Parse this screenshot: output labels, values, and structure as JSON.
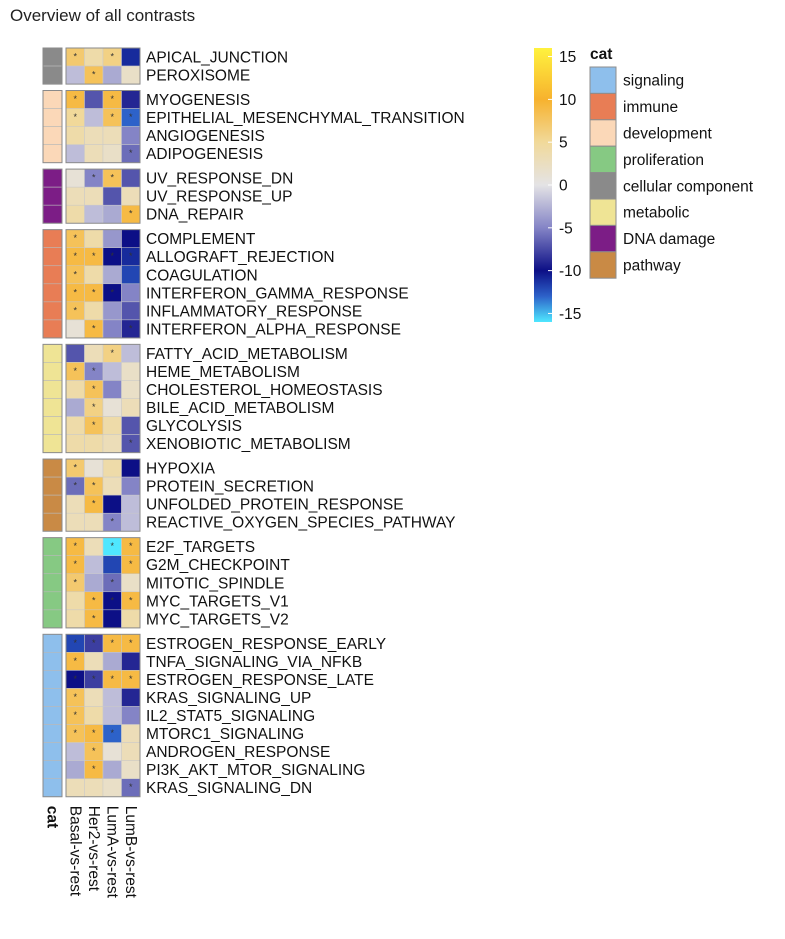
{
  "header": {
    "title": "Overview of all contrasts"
  },
  "chart_data": {
    "type": "heatmap",
    "title": "Overview of all contrasts",
    "columns": [
      "Basal-vs-rest",
      "Her2-vs-rest",
      "LumA-vs-rest",
      "LumB-vs-rest"
    ],
    "category_column_label": "cat",
    "legend_title": "cat",
    "categories": [
      {
        "name": "signaling",
        "color": "#8ebfec"
      },
      {
        "name": "immune",
        "color": "#e87d55"
      },
      {
        "name": "development",
        "color": "#fbd8b8"
      },
      {
        "name": "proliferation",
        "color": "#86c983"
      },
      {
        "name": "cellular component",
        "color": "#8a8a8a"
      },
      {
        "name": "metabolic",
        "color": "#efe495"
      },
      {
        "name": "DNA damage",
        "color": "#7c1d86"
      },
      {
        "name": "pathway",
        "color": "#c98a45"
      }
    ],
    "colorbar": {
      "range": [
        -16,
        16
      ],
      "ticks": [
        15,
        10,
        5,
        0,
        -5,
        -10,
        -15
      ],
      "stops": [
        {
          "v": 16,
          "c": "#fff23e"
        },
        {
          "v": 10,
          "c": "#f7b22e"
        },
        {
          "v": 5,
          "c": "#f1d99a"
        },
        {
          "v": 0,
          "c": "#e4e3e5"
        },
        {
          "v": -5,
          "c": "#8484c6"
        },
        {
          "v": -10,
          "c": "#0c0f86"
        },
        {
          "v": -13,
          "c": "#2d62c9"
        },
        {
          "v": -16,
          "c": "#4fe7ff"
        }
      ]
    },
    "groups": [
      {
        "category": "cellular component",
        "rows": [
          {
            "label": "APICAL_JUNCTION",
            "values": [
              7,
              4,
              6,
              -11
            ],
            "stars": [
              1,
              0,
              1,
              0
            ]
          },
          {
            "label": "PEROXISOME",
            "values": [
              -2,
              8,
              -3,
              2
            ],
            "stars": [
              0,
              1,
              0,
              0
            ]
          }
        ]
      },
      {
        "category": "development",
        "rows": [
          {
            "label": "MYOGENESIS",
            "values": [
              9,
              -7,
              9,
              -9
            ],
            "stars": [
              1,
              0,
              1,
              0
            ]
          },
          {
            "label": "EPITHELIAL_MESENCHYMAL_TRANSITION",
            "values": [
              5,
              -2,
              8,
              -13
            ],
            "stars": [
              1,
              0,
              1,
              1
            ]
          },
          {
            "label": "ANGIOGENESIS",
            "values": [
              4,
              3,
              3,
              -5
            ],
            "stars": [
              0,
              0,
              0,
              0
            ]
          },
          {
            "label": "ADIPOGENESIS",
            "values": [
              -2,
              3,
              2,
              -6
            ],
            "stars": [
              0,
              0,
              0,
              1
            ]
          }
        ]
      },
      {
        "category": "DNA damage",
        "rows": [
          {
            "label": "UV_RESPONSE_DN",
            "values": [
              1,
              -5,
              8,
              -7
            ],
            "stars": [
              0,
              1,
              1,
              0
            ]
          },
          {
            "label": "UV_RESPONSE_UP",
            "values": [
              3,
              3,
              -7,
              3
            ],
            "stars": [
              0,
              0,
              0,
              0
            ]
          },
          {
            "label": "DNA_REPAIR",
            "values": [
              4,
              -2,
              -3,
              9
            ],
            "stars": [
              0,
              0,
              0,
              1
            ]
          }
        ]
      },
      {
        "category": "immune",
        "rows": [
          {
            "label": "COMPLEMENT",
            "values": [
              8,
              4,
              -4,
              -10
            ],
            "stars": [
              1,
              0,
              0,
              0
            ]
          },
          {
            "label": "ALLOGRAFT_REJECTION",
            "values": [
              9,
              9,
              -10,
              -11
            ],
            "stars": [
              1,
              1,
              1,
              1
            ]
          },
          {
            "label": "COAGULATION",
            "values": [
              8,
              4,
              -3,
              -12
            ],
            "stars": [
              1,
              0,
              0,
              0
            ]
          },
          {
            "label": "INTERFERON_GAMMA_RESPONSE",
            "values": [
              9,
              9,
              -10,
              -5
            ],
            "stars": [
              1,
              1,
              1,
              0
            ]
          },
          {
            "label": "INFLAMMATORY_RESPONSE",
            "values": [
              8,
              4,
              -4,
              -7
            ],
            "stars": [
              1,
              0,
              0,
              0
            ]
          },
          {
            "label": "INTERFERON_ALPHA_RESPONSE",
            "values": [
              1,
              9,
              -5,
              -9
            ],
            "stars": [
              0,
              1,
              0,
              1
            ]
          }
        ]
      },
      {
        "category": "metabolic",
        "rows": [
          {
            "label": "FATTY_ACID_METABOLISM",
            "values": [
              -7,
              3,
              6,
              -2
            ],
            "stars": [
              0,
              0,
              1,
              0
            ]
          },
          {
            "label": "HEME_METABOLISM",
            "values": [
              8,
              -5,
              -2,
              2
            ],
            "stars": [
              1,
              1,
              0,
              0
            ]
          },
          {
            "label": "CHOLESTEROL_HOMEOSTASIS",
            "values": [
              4,
              8,
              -5,
              2
            ],
            "stars": [
              0,
              1,
              0,
              0
            ]
          },
          {
            "label": "BILE_ACID_METABOLISM",
            "values": [
              -3,
              6,
              1,
              3
            ],
            "stars": [
              0,
              1,
              0,
              0
            ]
          },
          {
            "label": "GLYCOLYSIS",
            "values": [
              4,
              8,
              4,
              -7
            ],
            "stars": [
              0,
              1,
              0,
              0
            ]
          },
          {
            "label": "XENOBIOTIC_METABOLISM",
            "values": [
              4,
              4,
              3,
              -7
            ],
            "stars": [
              0,
              0,
              0,
              1
            ]
          }
        ]
      },
      {
        "category": "pathway",
        "rows": [
          {
            "label": "HYPOXIA",
            "values": [
              7,
              1,
              4,
              -10
            ],
            "stars": [
              1,
              0,
              0,
              0
            ]
          },
          {
            "label": "PROTEIN_SECRETION",
            "values": [
              -6,
              8,
              3,
              -5
            ],
            "stars": [
              1,
              1,
              0,
              0
            ]
          },
          {
            "label": "UNFOLDED_PROTEIN_RESPONSE",
            "values": [
              3,
              9,
              -10,
              -2
            ],
            "stars": [
              0,
              1,
              0,
              0
            ]
          },
          {
            "label": "REACTIVE_OXYGEN_SPECIES_PATHWAY",
            "values": [
              3,
              3,
              -5,
              -2
            ],
            "stars": [
              0,
              0,
              1,
              0
            ]
          }
        ]
      },
      {
        "category": "proliferation",
        "rows": [
          {
            "label": "E2F_TARGETS",
            "values": [
              9,
              3,
              -16,
              9
            ],
            "stars": [
              1,
              0,
              1,
              1
            ]
          },
          {
            "label": "G2M_CHECKPOINT",
            "values": [
              9,
              -2,
              -12,
              9
            ],
            "stars": [
              1,
              0,
              0,
              1
            ]
          },
          {
            "label": "MITOTIC_SPINDLE",
            "values": [
              7,
              -3,
              -6,
              2
            ],
            "stars": [
              1,
              0,
              1,
              0
            ]
          },
          {
            "label": "MYC_TARGETS_V1",
            "values": [
              4,
              9,
              -10,
              9
            ],
            "stars": [
              0,
              1,
              1,
              1
            ]
          },
          {
            "label": "MYC_TARGETS_V2",
            "values": [
              4,
              9,
              -10,
              4
            ],
            "stars": [
              0,
              1,
              0,
              0
            ]
          }
        ]
      },
      {
        "category": "signaling",
        "rows": [
          {
            "label": "ESTROGEN_RESPONSE_EARLY",
            "values": [
              -12,
              -8,
              9,
              9
            ],
            "stars": [
              1,
              1,
              1,
              1
            ]
          },
          {
            "label": "TNFA_SIGNALING_VIA_NFKB",
            "values": [
              9,
              3,
              -3,
              -9
            ],
            "stars": [
              1,
              0,
              0,
              0
            ]
          },
          {
            "label": "ESTROGEN_RESPONSE_LATE",
            "values": [
              -10,
              -8,
              9,
              9
            ],
            "stars": [
              1,
              1,
              1,
              1
            ]
          },
          {
            "label": "KRAS_SIGNALING_UP",
            "values": [
              8,
              3,
              -2,
              -9
            ],
            "stars": [
              1,
              0,
              0,
              0
            ]
          },
          {
            "label": "IL2_STAT5_SIGNALING",
            "values": [
              8,
              4,
              -2,
              -5
            ],
            "stars": [
              1,
              0,
              0,
              0
            ]
          },
          {
            "label": "MTORC1_SIGNALING",
            "values": [
              8,
              9,
              -13,
              3
            ],
            "stars": [
              1,
              1,
              1,
              0
            ]
          },
          {
            "label": "ANDROGEN_RESPONSE",
            "values": [
              -2,
              8,
              1,
              3
            ],
            "stars": [
              0,
              1,
              0,
              0
            ]
          },
          {
            "label": "PI3K_AKT_MTOR_SIGNALING",
            "values": [
              -3,
              9,
              -3,
              2
            ],
            "stars": [
              0,
              1,
              0,
              0
            ]
          },
          {
            "label": "KRAS_SIGNALING_DN",
            "values": [
              3,
              3,
              2,
              -6
            ],
            "stars": [
              0,
              0,
              0,
              1
            ]
          }
        ]
      }
    ]
  }
}
